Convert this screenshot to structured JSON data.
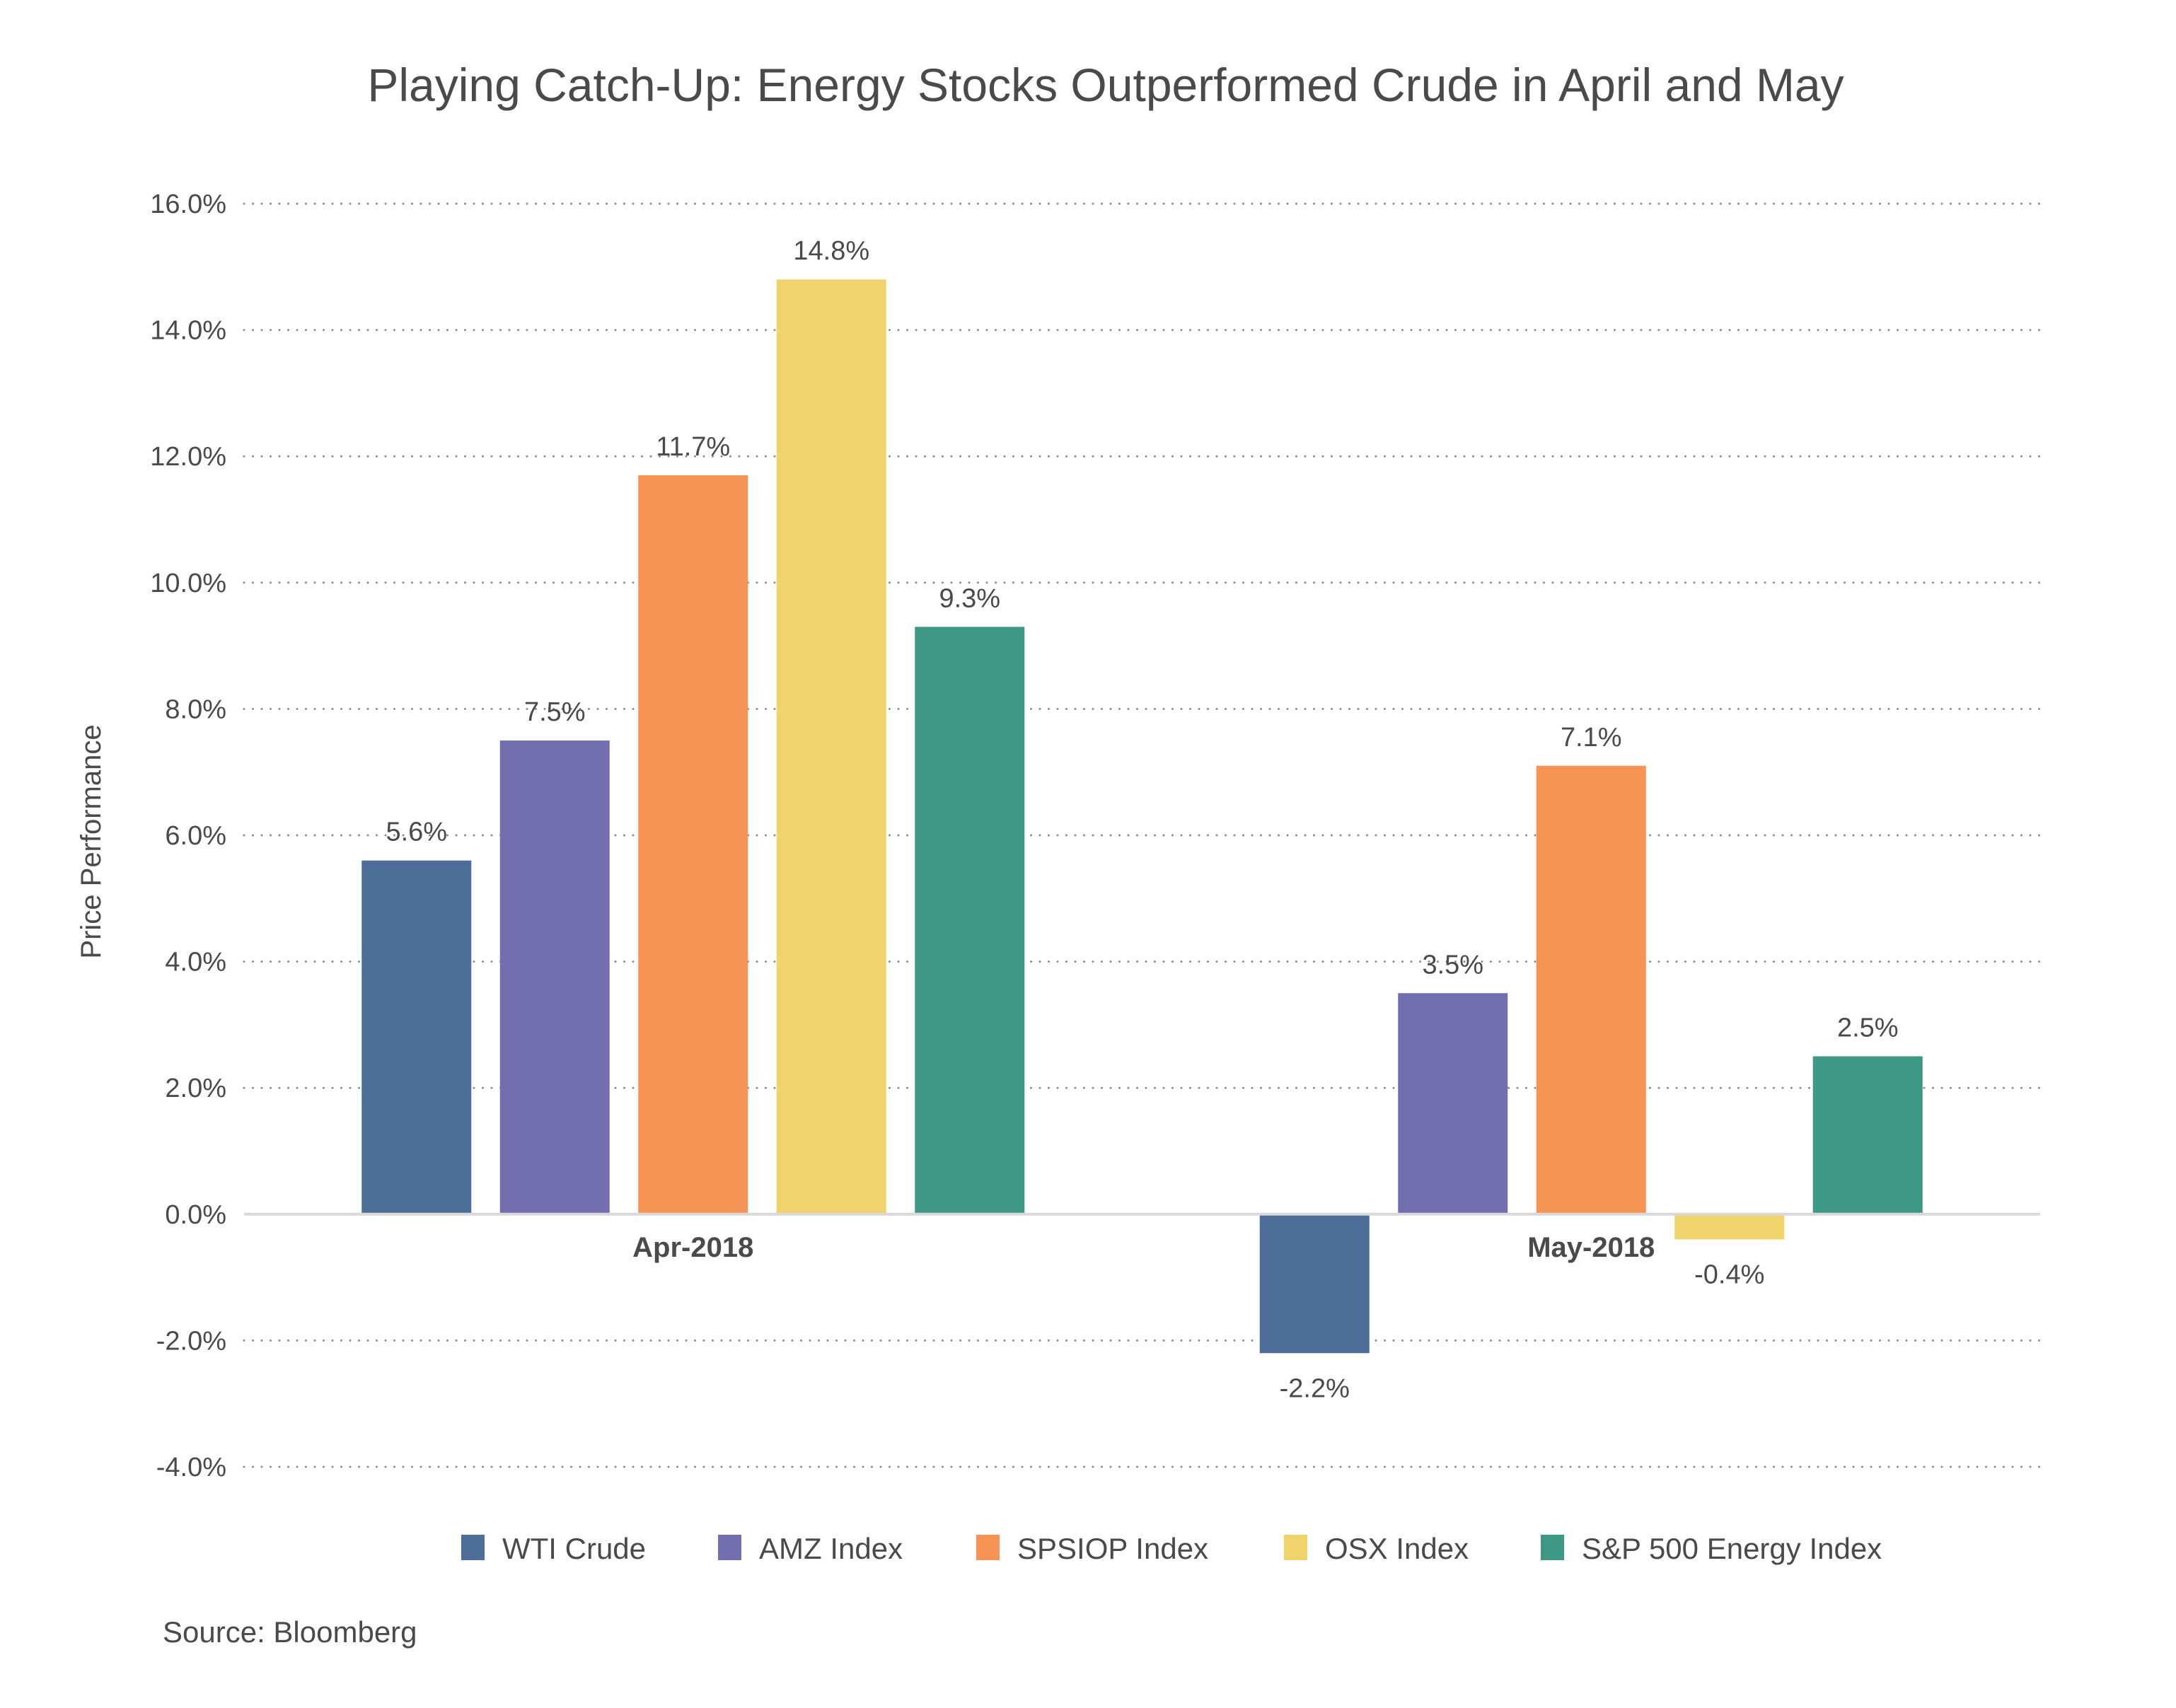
{
  "chart_data": {
    "type": "bar",
    "title": "Playing Catch-Up: Energy Stocks Outperformed Crude in April and May",
    "xlabel": "",
    "ylabel": "Price Performance",
    "ylim": [
      -4.0,
      16.0
    ],
    "yticks": [
      16.0,
      14.0,
      12.0,
      10.0,
      8.0,
      6.0,
      4.0,
      2.0,
      0.0,
      -2.0,
      -4.0
    ],
    "ytick_labels": [
      "16.0%",
      "14.0%",
      "12.0%",
      "10.0%",
      "8.0%",
      "6.0%",
      "4.0%",
      "2.0%",
      "0.0%",
      "-2.0%",
      "-4.0%"
    ],
    "grid": true,
    "grid_style": "dotted",
    "categories": [
      "Apr-2018",
      "May-2018"
    ],
    "series": [
      {
        "name": "WTI Crude",
        "color": "#4c6e99",
        "values": [
          5.6,
          -2.2
        ],
        "labels": [
          "5.6%",
          "-2.2%"
        ]
      },
      {
        "name": "AMZ Index",
        "color": "#736eaf",
        "values": [
          7.5,
          3.5
        ],
        "labels": [
          "7.5%",
          "3.5%"
        ]
      },
      {
        "name": "SPSIOP Index",
        "color": "#f79354",
        "values": [
          11.7,
          7.1
        ],
        "labels": [
          "11.7%",
          "7.1%"
        ]
      },
      {
        "name": "OSX Index",
        "color": "#f0d36a",
        "values": [
          14.8,
          -0.4
        ],
        "labels": [
          "14.8%",
          "-0.4%"
        ]
      },
      {
        "name": "S&P 500 Energy Index",
        "color": "#3e9886",
        "values": [
          9.3,
          2.5
        ],
        "labels": [
          "9.3%",
          "2.5%"
        ]
      }
    ],
    "legend_position": "bottom",
    "source": "Source: Bloomberg"
  }
}
